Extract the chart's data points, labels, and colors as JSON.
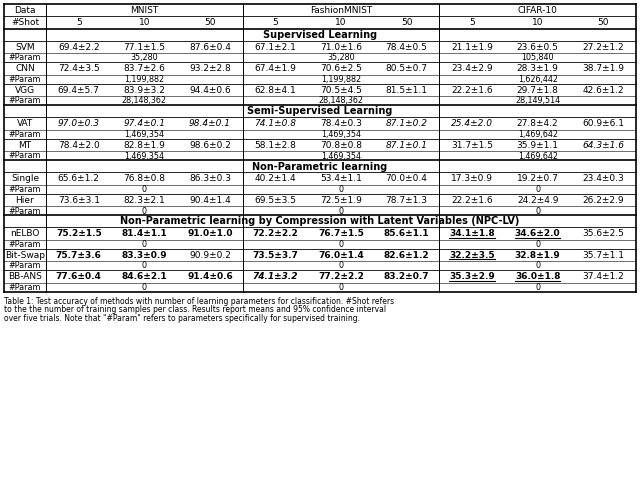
{
  "caption": "Table 1: Test accuracy of methods with number of learning parameters for classification. #Shot refers\nto the the number of training samples per class. Results report means and 95% confidence interval\nover five trials. Note that \"#Param\" refers to parameters specifically for supervised training.",
  "section_supervised": "Supervised Learning",
  "section_semi": "Semi-Supervised Learning",
  "section_nonparam": "Non-Parametric learning",
  "section_npclv": "Non-Parametric learning by Compression with Latent Variables (NPC-LV)",
  "rows": [
    {
      "method": "SVM",
      "param": "35,280",
      "param2": "35,280",
      "param3": "105,840",
      "vals": [
        "69.4±2.2",
        "77.1±1.5",
        "87.6±0.4",
        "67.1±2.1",
        "71.0±1.6",
        "78.4±0.5",
        "21.1±1.9",
        "23.6±0.5",
        "27.2±1.2"
      ],
      "bold": [],
      "italic": [],
      "underline": []
    },
    {
      "method": "CNN",
      "param": "1,199,882",
      "param2": "1,199,882",
      "param3": "1,626,442",
      "vals": [
        "72.4±3.5",
        "83.7±2.6",
        "93.2±2.8",
        "67.4±1.9",
        "70.6±2.5",
        "80.5±0.7",
        "23.4±2.9",
        "28.3±1.9",
        "38.7±1.9"
      ],
      "bold": [],
      "italic": [],
      "underline": []
    },
    {
      "method": "VGG",
      "param": "28,148,362",
      "param2": "28,148,362",
      "param3": "28,149,514",
      "vals": [
        "69.4±5.7",
        "83.9±3.2",
        "94.4±0.6",
        "62.8±4.1",
        "70.5±4.5",
        "81.5±1.1",
        "22.2±1.6",
        "29.7±1.8",
        "42.6±1.2"
      ],
      "bold": [],
      "italic": [],
      "underline": []
    },
    {
      "method": "VAT",
      "param": "1,469,354",
      "param2": "1,469,354",
      "param3": "1,469,642",
      "vals": [
        "97.0±0.3",
        "97.4±0.1",
        "98.4±0.1",
        "74.1±0.8",
        "78.4±0.3",
        "87.1±0.2",
        "25.4±2.0",
        "27.8±4.2",
        "60.9±6.1"
      ],
      "bold": [],
      "italic": [
        0,
        1,
        2,
        3,
        5,
        6
      ],
      "underline": []
    },
    {
      "method": "MT",
      "param": "1,469,354",
      "param2": "1,469,354",
      "param3": "1,469,642",
      "vals": [
        "78.4±2.0",
        "82.8±1.9",
        "98.6±0.2",
        "58.1±2.8",
        "70.8±0.8",
        "87.1±0.1",
        "31.7±1.5",
        "35.9±1.1",
        "64.3±1.6"
      ],
      "bold": [],
      "italic": [
        5,
        8
      ],
      "underline": []
    },
    {
      "method": "Single",
      "param": "0",
      "param2": "0",
      "param3": "0",
      "vals": [
        "65.6±1.2",
        "76.8±0.8",
        "86.3±0.3",
        "40.2±1.4",
        "53.4±1.1",
        "70.0±0.4",
        "17.3±0.9",
        "19.2±0.7",
        "23.4±0.3"
      ],
      "bold": [],
      "italic": [],
      "underline": []
    },
    {
      "method": "Hier",
      "param": "0",
      "param2": "0",
      "param3": "0",
      "vals": [
        "73.6±3.1",
        "82.3±2.1",
        "90.4±1.4",
        "69.5±3.5",
        "72.5±1.9",
        "78.7±1.3",
        "22.2±1.6",
        "24.2±4.9",
        "26.2±2.9"
      ],
      "bold": [],
      "italic": [],
      "underline": []
    },
    {
      "method": "nELBO",
      "param": "0",
      "param2": "0",
      "param3": "0",
      "vals": [
        "75.2±1.5",
        "81.4±1.1",
        "91.0±1.0",
        "72.2±2.2",
        "76.7±1.5",
        "85.6±1.1",
        "34.1±1.8",
        "34.6±2.0",
        "35.6±2.5"
      ],
      "bold": [
        0,
        1,
        2,
        3,
        4,
        5,
        6,
        7
      ],
      "italic": [],
      "underline": [
        6,
        7
      ]
    },
    {
      "method": "Bit-Swap",
      "param": "0",
      "param2": "0",
      "param3": "0",
      "vals": [
        "75.7±3.6",
        "83.3±0.9",
        "90.9±0.2",
        "73.5±3.7",
        "76.0±1.4",
        "82.6±1.2",
        "32.2±3.5",
        "32.8±1.9",
        "35.7±1.1"
      ],
      "bold": [
        0,
        1,
        3,
        4,
        5,
        6,
        7
      ],
      "italic": [],
      "underline": [
        6
      ]
    },
    {
      "method": "BB-ANS",
      "param": "0",
      "param2": "0",
      "param3": "0",
      "vals": [
        "77.6±0.4",
        "84.6±2.1",
        "91.4±0.6",
        "74.1±3.2",
        "77.2±2.2",
        "83.2±0.7",
        "35.3±2.9",
        "36.0±1.8",
        "37.4±1.2"
      ],
      "bold": [
        0,
        1,
        2,
        3,
        4,
        5,
        6,
        7
      ],
      "italic": [
        3
      ],
      "underline": [
        6,
        7
      ]
    }
  ]
}
